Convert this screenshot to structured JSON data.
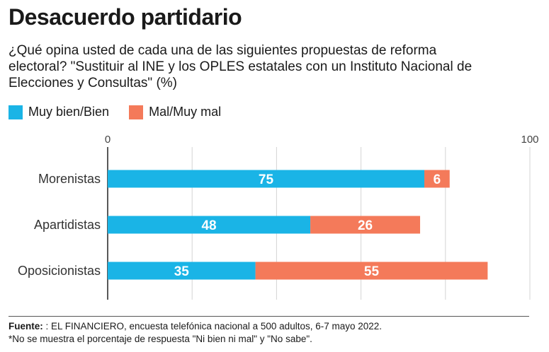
{
  "header": {
    "title": "Desacuerdo partidario",
    "subtitle": "¿Qué opina usted de cada una de las siguientes propuestas de reforma electoral? \"Sustituir al INE y los OPLES estatales con un Instituto Nacional de Elecciones y Consultas\" (%)"
  },
  "legend": {
    "items": [
      {
        "label": "Muy bien/Bien",
        "color": "#1ab4e6"
      },
      {
        "label": "Mal/Muy mal",
        "color": "#f47a5a"
      }
    ]
  },
  "chart_data": {
    "type": "bar",
    "orientation": "horizontal",
    "stacked": true,
    "categories": [
      "Morenistas",
      "Apartidistas",
      "Oposicionistas"
    ],
    "series": [
      {
        "name": "Muy bien/Bien",
        "values": [
          75,
          48,
          35
        ],
        "color": "#1ab4e6"
      },
      {
        "name": "Mal/Muy mal",
        "values": [
          6,
          26,
          55
        ],
        "color": "#f47a5a"
      }
    ],
    "xlim": [
      0,
      100
    ],
    "xticks": [
      "0",
      "100"
    ],
    "grid": true,
    "legend_position": "top-left"
  },
  "footer": {
    "source_label": "Fuente:",
    "source_text": " : EL FINANCIERO, encuesta telefónica nacional a 500 adultos, 6-7 mayo 2022.",
    "note": "*No se muestra el porcentaje de respuesta \"Ni bien ni mal\" y \"No sabe\"."
  }
}
